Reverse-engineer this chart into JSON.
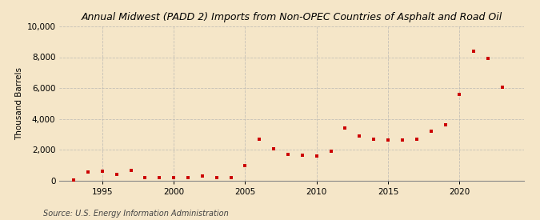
{
  "title": "Annual Midwest (PADD 2) Imports from Non-OPEC Countries of Asphalt and Road Oil",
  "ylabel": "Thousand Barrels",
  "source": "Source: U.S. Energy Information Administration",
  "background_color": "#f5e6c8",
  "marker_color": "#cc0000",
  "years": [
    1993,
    1994,
    1995,
    1996,
    1997,
    1998,
    1999,
    2000,
    2001,
    2002,
    2003,
    2004,
    2005,
    2006,
    2007,
    2008,
    2009,
    2010,
    2011,
    2012,
    2013,
    2014,
    2015,
    2016,
    2017,
    2018,
    2019,
    2020,
    2021,
    2022,
    2023
  ],
  "values": [
    50,
    550,
    600,
    400,
    650,
    200,
    180,
    200,
    200,
    300,
    200,
    200,
    950,
    2700,
    2050,
    1700,
    1650,
    1600,
    1900,
    3400,
    2900,
    2700,
    2600,
    2600,
    2700,
    3200,
    3600,
    5600,
    8400,
    7900,
    6050
  ],
  "ylim": [
    0,
    10000
  ],
  "yticks": [
    0,
    2000,
    4000,
    6000,
    8000,
    10000
  ],
  "ytick_labels": [
    "0",
    "2,000",
    "4,000",
    "6,000",
    "8,000",
    "10,000"
  ],
  "xlim": [
    1992,
    2024.5
  ],
  "xticks": [
    1995,
    2000,
    2005,
    2010,
    2015,
    2020
  ]
}
